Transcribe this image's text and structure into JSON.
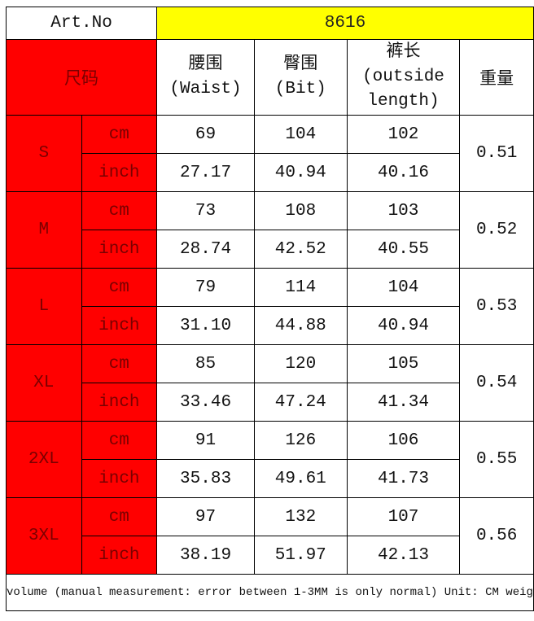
{
  "header": {
    "art_label": "Art.No",
    "art_value": "8616"
  },
  "columns": {
    "size": "尺码",
    "waist": [
      "腰围",
      "(Waist)"
    ],
    "hip": [
      "臀围",
      "(Bit)"
    ],
    "length": [
      "裤长",
      "(outside",
      "length)"
    ],
    "weight": "重量"
  },
  "colors": {
    "size_fill": "#ff0000",
    "art_fill": "#ffff00"
  },
  "sizes": [
    {
      "size": "S",
      "cm": [
        "69",
        "104",
        "102"
      ],
      "inch": [
        "27.17",
        "40.94",
        "40.16"
      ],
      "weight": "0.51"
    },
    {
      "size": "M",
      "cm": [
        "73",
        "108",
        "103"
      ],
      "inch": [
        "28.74",
        "42.52",
        "40.55"
      ],
      "weight": "0.52"
    },
    {
      "size": "L",
      "cm": [
        "79",
        "114",
        "104"
      ],
      "inch": [
        "31.10",
        "44.88",
        "40.94"
      ],
      "weight": "0.53"
    },
    {
      "size": "XL",
      "cm": [
        "85",
        "120",
        "105"
      ],
      "inch": [
        "33.46",
        "47.24",
        "41.34"
      ],
      "weight": "0.54"
    },
    {
      "size": "2XL",
      "cm": [
        "91",
        "126",
        "106"
      ],
      "inch": [
        "35.83",
        "49.61",
        "41.73"
      ],
      "weight": "0.55"
    },
    {
      "size": "3XL",
      "cm": [
        "97",
        "132",
        "107"
      ],
      "inch": [
        "38.19",
        "51.97",
        "42.13"
      ],
      "weight": "0.56"
    }
  ],
  "units": {
    "cm": "cm",
    "inch": "inch"
  },
  "footer": "volume (manual measurement: error between 1-3MM is only normal) Unit: CM weig"
}
